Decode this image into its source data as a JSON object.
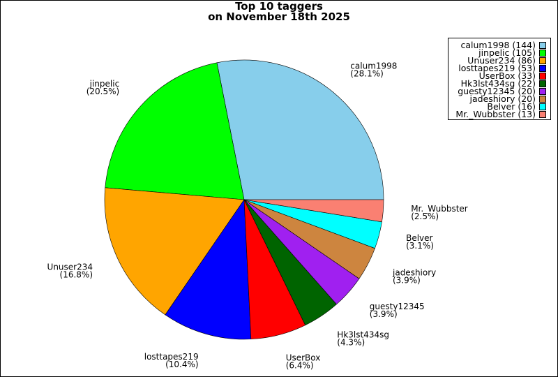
{
  "chart_data": {
    "type": "pie",
    "title": "Top 10 taggers",
    "subtitle": "on November 18th 2025",
    "legend_position": "top-right",
    "slices": [
      {
        "label": "calum1998",
        "value": 144,
        "percent": "(28.1%)",
        "legend": "calum1998 (144)",
        "color": "#87CEEB"
      },
      {
        "label": "jinpelic",
        "value": 105,
        "percent": "(20.5%)",
        "legend": "jinpelic (105)",
        "color": "#00FF00"
      },
      {
        "label": "Unuser234",
        "value": 86,
        "percent": "(16.8%)",
        "legend": "Unuser234 (86)",
        "color": "#FFA500"
      },
      {
        "label": "losttapes219",
        "value": 53,
        "percent": "(10.4%)",
        "legend": "losttapes219 (53)",
        "color": "#0000FF"
      },
      {
        "label": "UserBox",
        "value": 33,
        "percent": "(6.4%)",
        "legend": "UserBox (33)",
        "color": "#FF0000"
      },
      {
        "label": "Hk3lst434sg",
        "value": 22,
        "percent": "(4.3%)",
        "legend": "Hk3lst434sg (22)",
        "color": "#006400"
      },
      {
        "label": "guesty12345",
        "value": 20,
        "percent": "(3.9%)",
        "legend": "guesty12345 (20)",
        "color": "#A020F0"
      },
      {
        "label": "jadeshiory",
        "value": 20,
        "percent": "(3.9%)",
        "legend": "jadeshiory (20)",
        "color": "#CD853F"
      },
      {
        "label": "Belver",
        "value": 16,
        "percent": "(3.1%)",
        "legend": "Belver (16)",
        "color": "#00FFFF"
      },
      {
        "label": "Mr._Wubbster",
        "value": 13,
        "percent": "(2.5%)",
        "legend": "Mr._Wubbster (13)",
        "color": "#FA8072"
      }
    ]
  }
}
